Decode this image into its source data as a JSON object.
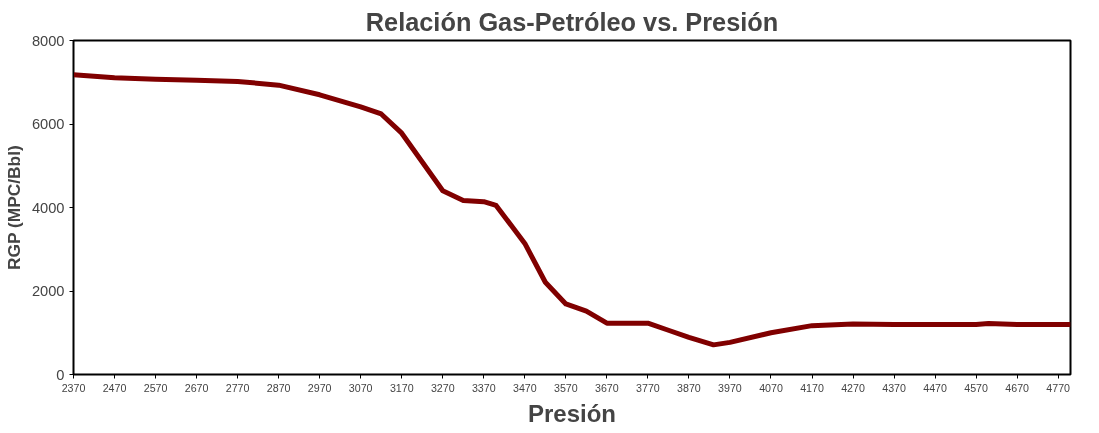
{
  "chart_data": {
    "type": "line",
    "title": "Relación Gas-Petróleo vs. Presión",
    "xlabel": "Presión",
    "ylabel": "RGP (MPC/Bbl)",
    "x": [
      2370,
      2470,
      2570,
      2670,
      2770,
      2870,
      2970,
      3070,
      3120,
      3170,
      3220,
      3270,
      3320,
      3370,
      3400,
      3470,
      3520,
      3570,
      3620,
      3670,
      3770,
      3820,
      3870,
      3930,
      3970,
      4070,
      4170,
      4270,
      4370,
      4570,
      4600,
      4670,
      4800
    ],
    "series": [
      {
        "color": "#800000",
        "values": [
          7180,
          7110,
          7070,
          7050,
          7020,
          6930,
          6700,
          6410,
          6240,
          5780,
          5090,
          4400,
          4170,
          4140,
          4050,
          3140,
          2210,
          1690,
          1520,
          1230,
          1230,
          1060,
          890,
          710,
          770,
          1000,
          1170,
          1210,
          1200,
          1200,
          1220,
          1200,
          1200
        ]
      }
    ],
    "xlim": [
      2370,
      4800
    ],
    "xticks": [
      2370,
      2470,
      2570,
      2670,
      2770,
      2870,
      2970,
      3070,
      3170,
      3270,
      3370,
      3470,
      3570,
      3670,
      3770,
      3870,
      3970,
      4070,
      4170,
      4270,
      4370,
      4470,
      4570,
      4670,
      4770
    ],
    "ylim": [
      0,
      8000
    ],
    "yticks": [
      0,
      2000,
      4000,
      6000,
      8000
    ],
    "grid": false,
    "marker": "none",
    "line_style": "solid"
  }
}
